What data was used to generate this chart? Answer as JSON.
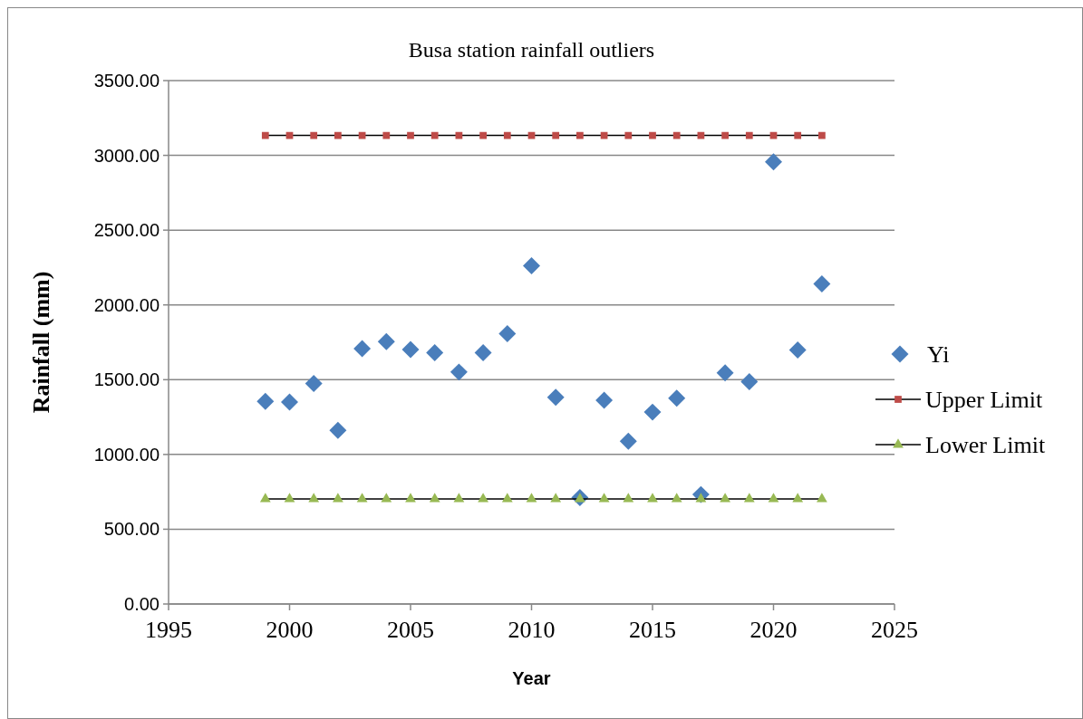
{
  "chart_data": {
    "type": "scatter",
    "title": "Busa station rainfall outliers",
    "xlabel": "Year",
    "ylabel": "Rainfall (mm)",
    "x": [
      1999,
      2000,
      2001,
      2002,
      2003,
      2004,
      2005,
      2006,
      2007,
      2008,
      2009,
      2010,
      2011,
      2012,
      2013,
      2014,
      2015,
      2016,
      2017,
      2018,
      2019,
      2020,
      2021,
      2022
    ],
    "series": [
      {
        "name": "Yi",
        "marker": "diamond",
        "color": "#4a7ebb",
        "values": [
          1355,
          1350,
          1475,
          1161,
          1708,
          1754,
          1701,
          1680,
          1551,
          1680,
          1807,
          2262,
          1382,
          711,
          1362,
          1089,
          1283,
          1376,
          732,
          1546,
          1486,
          2957,
          1699,
          2140
        ]
      },
      {
        "name": "Upper Limit",
        "type": "line",
        "marker": "square",
        "color": "#be4b48",
        "values": [
          3133,
          3133,
          3133,
          3133,
          3133,
          3133,
          3133,
          3133,
          3133,
          3133,
          3133,
          3133,
          3133,
          3133,
          3133,
          3133,
          3133,
          3133,
          3133,
          3133,
          3133,
          3133,
          3133,
          3133
        ]
      },
      {
        "name": "Lower Limit",
        "type": "line",
        "marker": "triangle",
        "color": "#98b954",
        "values": [
          702,
          702,
          702,
          702,
          702,
          702,
          702,
          702,
          702,
          702,
          702,
          702,
          702,
          702,
          702,
          702,
          702,
          702,
          702,
          702,
          702,
          702,
          702,
          702
        ]
      }
    ],
    "xlim": [
      1995,
      2025
    ],
    "xticks": [
      1995,
      2000,
      2005,
      2010,
      2015,
      2020,
      2025
    ],
    "ylim": [
      0,
      3500
    ],
    "yticks": [
      {
        "value": 0,
        "label": "0.00"
      },
      {
        "value": 500,
        "label": "500.00"
      },
      {
        "value": 1000,
        "label": "1000.00"
      },
      {
        "value": 1500,
        "label": "1500.00"
      },
      {
        "value": 2000,
        "label": "2000.00"
      },
      {
        "value": 2500,
        "label": "2500.00"
      },
      {
        "value": 3000,
        "label": "3000.00"
      },
      {
        "value": 3500,
        "label": "3500.00"
      }
    ],
    "grid": "y",
    "legend": "right"
  }
}
